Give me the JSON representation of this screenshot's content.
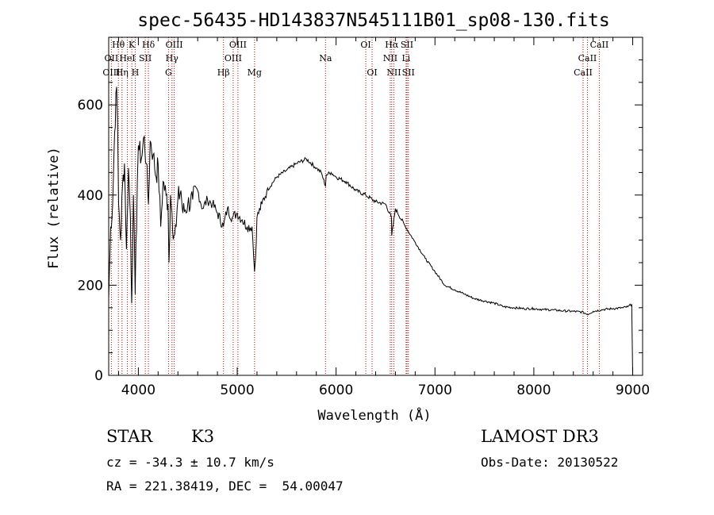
{
  "chart_data": {
    "type": "line",
    "title": "spec-56435-HD143837N545111B01_sp08-130.fits",
    "xlabel": "Wavelength (Å)",
    "ylabel": "Flux (relative)",
    "xlim": [
      3700,
      9100
    ],
    "ylim": [
      0,
      750
    ],
    "xticks": [
      4000,
      5000,
      6000,
      7000,
      8000,
      9000
    ],
    "yticks": [
      0,
      200,
      400,
      600
    ],
    "series": [
      {
        "name": "spectrum",
        "x": [
          3700,
          3720,
          3740,
          3760,
          3780,
          3790,
          3800,
          3820,
          3840,
          3860,
          3880,
          3900,
          3920,
          3933,
          3950,
          3968,
          3990,
          4000,
          4030,
          4060,
          4080,
          4102,
          4120,
          4150,
          4180,
          4200,
          4226,
          4250,
          4280,
          4300,
          4310,
          4325,
          4340,
          4360,
          4383,
          4400,
          4430,
          4450,
          4500,
          4550,
          4600,
          4650,
          4700,
          4750,
          4800,
          4861,
          4900,
          4950,
          5000,
          5050,
          5100,
          5150,
          5175,
          5185,
          5200,
          5250,
          5300,
          5400,
          5500,
          5600,
          5700,
          5800,
          5850,
          5893,
          5900,
          5950,
          6000,
          6100,
          6200,
          6300,
          6400,
          6500,
          6560,
          6563,
          6600,
          6700,
          6800,
          6900,
          7000,
          7100,
          7200,
          7300,
          7400,
          7500,
          7600,
          7700,
          7800,
          7900,
          8000,
          8100,
          8200,
          8300,
          8400,
          8500,
          8542,
          8600,
          8700,
          8800,
          8900,
          8950,
          8990,
          8995,
          9000
        ],
        "y": [
          170,
          330,
          380,
          540,
          640,
          560,
          380,
          300,
          420,
          470,
          280,
          460,
          350,
          160,
          400,
          180,
          430,
          510,
          480,
          530,
          470,
          380,
          520,
          490,
          440,
          470,
          330,
          430,
          400,
          380,
          250,
          400,
          360,
          310,
          330,
          390,
          410,
          360,
          380,
          390,
          410,
          370,
          390,
          380,
          360,
          330,
          370,
          350,
          360,
          345,
          330,
          330,
          230,
          260,
          350,
          380,
          410,
          440,
          455,
          470,
          480,
          460,
          450,
          420,
          445,
          450,
          440,
          430,
          410,
          400,
          385,
          380,
          350,
          310,
          370,
          330,
          295,
          260,
          230,
          200,
          190,
          180,
          170,
          165,
          160,
          152,
          150,
          148,
          148,
          146,
          145,
          143,
          142,
          140,
          135,
          142,
          146,
          148,
          150,
          152,
          158,
          80,
          0
        ]
      }
    ],
    "spectral_lines": [
      {
        "label": "Hθ",
        "wavelength": 3798,
        "row": 1
      },
      {
        "label": "OII",
        "wavelength": 3727,
        "row": 2
      },
      {
        "label": "OIII",
        "wavelength": 3727,
        "row": 3
      },
      {
        "label": "K",
        "wavelength": 3934,
        "row": 1
      },
      {
        "label": "HeI",
        "wavelength": 3889,
        "row": 2
      },
      {
        "label": "Hη",
        "wavelength": 3835,
        "row": 3
      },
      {
        "label": "SII",
        "wavelength": 4070,
        "row": 2
      },
      {
        "label": "H",
        "wavelength": 3969,
        "row": 3
      },
      {
        "label": "Hδ",
        "wavelength": 4102,
        "row": 1
      },
      {
        "label": "OIII",
        "wavelength": 4363,
        "row": 1
      },
      {
        "label": "Hγ",
        "wavelength": 4340,
        "row": 2
      },
      {
        "label": "G",
        "wavelength": 4305,
        "row": 3
      },
      {
        "label": "OIII",
        "wavelength": 5007,
        "row": 1
      },
      {
        "label": "OIII",
        "wavelength": 4959,
        "row": 2
      },
      {
        "label": "Hβ",
        "wavelength": 4861,
        "row": 3
      },
      {
        "label": "Mg",
        "wavelength": 5175,
        "row": 3
      },
      {
        "label": "Na",
        "wavelength": 5893,
        "row": 2
      },
      {
        "label": "OI",
        "wavelength": 6300,
        "row": 1
      },
      {
        "label": "OI",
        "wavelength": 6364,
        "row": 3
      },
      {
        "label": "Hα",
        "wavelength": 6563,
        "row": 1
      },
      {
        "label": "NII",
        "wavelength": 6548,
        "row": 2
      },
      {
        "label": "NII",
        "wavelength": 6584,
        "row": 3
      },
      {
        "label": "SII",
        "wavelength": 6717,
        "row": 1
      },
      {
        "label": "Li",
        "wavelength": 6708,
        "row": 2
      },
      {
        "label": "SII",
        "wavelength": 6731,
        "row": 3
      },
      {
        "label": "CaII",
        "wavelength": 8662,
        "row": 1
      },
      {
        "label": "CaII",
        "wavelength": 8542,
        "row": 2
      },
      {
        "label": "CaII",
        "wavelength": 8498,
        "row": 3
      }
    ],
    "line_color": "#c00000"
  },
  "info": {
    "object_class": "STAR",
    "subclass": "K3",
    "redshift": "cz = -34.3 ± 10.7 km/s",
    "coords": "RA = 221.38419, DEC =  54.00047",
    "survey": "LAMOST DR3",
    "obs_date": "Obs-Date: 20130522"
  }
}
